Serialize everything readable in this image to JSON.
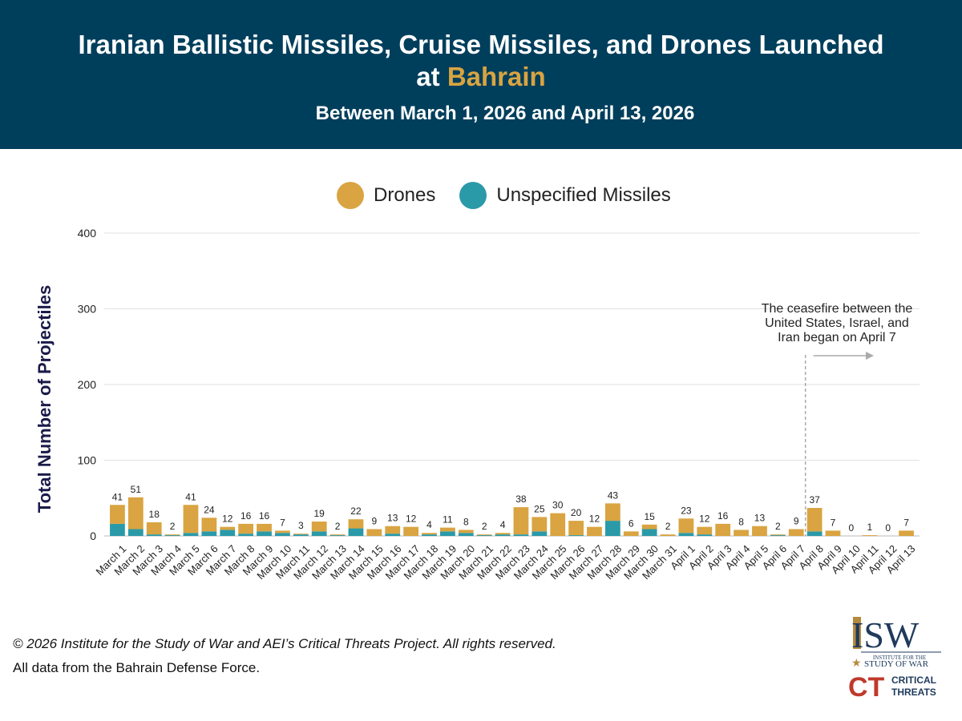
{
  "header": {
    "title_part1": "Iranian Ballistic Missiles, Cruise Missiles, and Drones Launched",
    "title_part2_prefix": "at ",
    "title_accent": "Bahrain",
    "subtitle": "Between March 1, 2026 and April 13, 2026"
  },
  "legend": {
    "drones": "Drones",
    "missiles": "Unspecified Missiles"
  },
  "colors": {
    "header_bg": "#003f5c",
    "accent": "#d9a441",
    "drones": "#d9a441",
    "missiles": "#2a9aa8"
  },
  "chart_data": {
    "type": "bar",
    "stacked": true,
    "ylabel": "Total Number of Projectiles",
    "ylim": [
      0,
      400
    ],
    "yticks": [
      0,
      100,
      200,
      300,
      400
    ],
    "categories": [
      "March 1",
      "March 2",
      "March 3",
      "March 4",
      "March 5",
      "March 6",
      "March 7",
      "March 8",
      "March 9",
      "March 10",
      "March 11",
      "March 12",
      "March 13",
      "March 14",
      "March 15",
      "March 16",
      "March 17",
      "March 18",
      "March 19",
      "March 20",
      "March 21",
      "March 22",
      "March 23",
      "March 24",
      "March 25",
      "March 26",
      "March 27",
      "March 28",
      "March 29",
      "March 30",
      "March 31",
      "April 1",
      "April 2",
      "April 3",
      "April 4",
      "April 5",
      "April 6",
      "April 7",
      "April 8",
      "April 9",
      "April 10",
      "April 11",
      "April 12",
      "April 13"
    ],
    "series": [
      {
        "name": "Unspecified Missiles",
        "values": [
          16,
          9,
          2,
          1,
          4,
          6,
          8,
          3,
          6,
          4,
          2,
          6,
          1,
          10,
          0,
          3,
          0,
          2,
          6,
          4,
          1,
          2,
          2,
          6,
          0,
          1,
          0,
          20,
          0,
          9,
          0,
          4,
          2,
          0,
          0,
          0,
          1,
          0,
          6,
          0,
          0,
          0,
          0,
          0
        ]
      },
      {
        "name": "Drones",
        "values": [
          25,
          42,
          16,
          1,
          37,
          18,
          4,
          13,
          10,
          3,
          1,
          13,
          1,
          12,
          9,
          10,
          12,
          2,
          5,
          4,
          1,
          2,
          36,
          19,
          30,
          19,
          12,
          23,
          6,
          6,
          2,
          19,
          10,
          16,
          8,
          13,
          1,
          9,
          31,
          7,
          0,
          1,
          0,
          7
        ]
      }
    ],
    "totals": [
      41,
      51,
      18,
      2,
      41,
      24,
      12,
      16,
      16,
      7,
      3,
      19,
      2,
      22,
      9,
      13,
      12,
      4,
      11,
      8,
      2,
      4,
      38,
      25,
      30,
      20,
      12,
      43,
      6,
      15,
      2,
      23,
      12,
      16,
      8,
      13,
      2,
      9,
      37,
      7,
      0,
      1,
      0,
      7
    ],
    "annotation": {
      "lines": [
        "The ceasefire between the",
        "United States, Israel, and",
        "Iran began on April 7"
      ],
      "category": "April 7"
    }
  },
  "footer": {
    "copyright": "© 2026 Institute for the Study of War and AEI’s Critical Threats Project. All rights reserved.",
    "source": "All data from the Bahrain Defense Force."
  },
  "logos": {
    "isw": "ISW",
    "isw_sub1": "INSTITUTE FOR THE",
    "isw_sub2": "STUDY OF WAR",
    "ct": "CT",
    "ct_line1": "CRITICAL",
    "ct_line2": "THREATS"
  }
}
